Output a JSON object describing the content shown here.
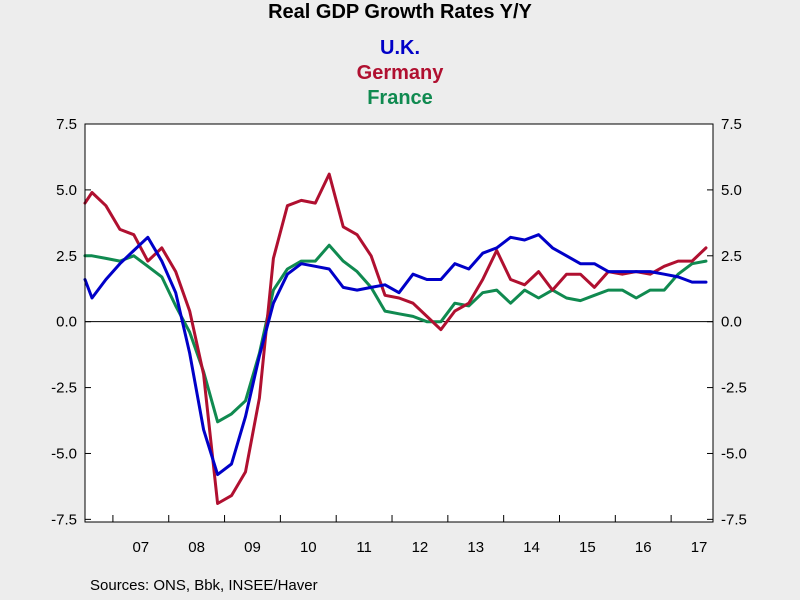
{
  "chart_data": {
    "type": "line",
    "title": "Real GDP Growth Rates Y/Y",
    "x_tick_labels": [
      "07",
      "08",
      "09",
      "10",
      "11",
      "12",
      "13",
      "14",
      "15",
      "16",
      "17"
    ],
    "y_ticks": [
      7.5,
      5.0,
      2.5,
      0.0,
      -2.5,
      -5.0,
      -7.5
    ],
    "y_tick_labels": [
      "7.5",
      "5.0",
      "2.5",
      "0.0",
      "-2.5",
      "-5.0",
      "-7.5"
    ],
    "ylim": [
      -7.6,
      7.5
    ],
    "xlim": [
      2006.5,
      2017.75
    ],
    "zero_line": true,
    "legend_placement": "top-center",
    "source": "Sources:  ONS, Bbk, INSEE/Haver",
    "series": [
      {
        "name": "U.K.",
        "color": "#0000c8",
        "x": [
          2006.5,
          2006.625,
          2006.875,
          2007.125,
          2007.375,
          2007.625,
          2007.875,
          2008.125,
          2008.375,
          2008.625,
          2008.875,
          2009.125,
          2009.375,
          2009.625,
          2009.875,
          2010.125,
          2010.375,
          2010.625,
          2010.875,
          2011.125,
          2011.375,
          2011.625,
          2011.875,
          2012.125,
          2012.375,
          2012.625,
          2012.875,
          2013.125,
          2013.375,
          2013.625,
          2013.875,
          2014.125,
          2014.375,
          2014.625,
          2014.875,
          2015.125,
          2015.375,
          2015.625,
          2015.875,
          2016.125,
          2016.375,
          2016.625,
          2016.875,
          2017.125,
          2017.375,
          2017.625
        ],
        "values": [
          1.6,
          0.9,
          1.6,
          2.2,
          2.7,
          3.2,
          2.3,
          1.1,
          -1.2,
          -4.1,
          -5.8,
          -5.4,
          -3.6,
          -1.3,
          0.7,
          1.8,
          2.2,
          2.1,
          2.0,
          1.3,
          1.2,
          1.3,
          1.4,
          1.1,
          1.8,
          1.6,
          1.6,
          2.2,
          2.0,
          2.6,
          2.8,
          3.2,
          3.1,
          3.3,
          2.8,
          2.5,
          2.2,
          2.2,
          1.9,
          1.9,
          1.9,
          1.9,
          1.8,
          1.7,
          1.5,
          1.5
        ]
      },
      {
        "name": "Germany",
        "color": "#b01030",
        "x": [
          2006.5,
          2006.625,
          2006.875,
          2007.125,
          2007.375,
          2007.625,
          2007.875,
          2008.125,
          2008.375,
          2008.625,
          2008.875,
          2009.125,
          2009.375,
          2009.625,
          2009.875,
          2010.125,
          2010.375,
          2010.625,
          2010.875,
          2011.125,
          2011.375,
          2011.625,
          2011.875,
          2012.125,
          2012.375,
          2012.625,
          2012.875,
          2013.125,
          2013.375,
          2013.625,
          2013.875,
          2014.125,
          2014.375,
          2014.625,
          2014.875,
          2015.125,
          2015.375,
          2015.625,
          2015.875,
          2016.125,
          2016.375,
          2016.625,
          2016.875,
          2017.125,
          2017.375,
          2017.625
        ],
        "values": [
          4.5,
          4.9,
          4.4,
          3.5,
          3.3,
          2.3,
          2.8,
          1.9,
          0.4,
          -2.0,
          -6.9,
          -6.6,
          -5.7,
          -2.9,
          2.4,
          4.4,
          4.6,
          4.5,
          5.6,
          3.6,
          3.3,
          2.5,
          1.0,
          0.9,
          0.7,
          0.2,
          -0.3,
          0.4,
          0.7,
          1.6,
          2.7,
          1.6,
          1.4,
          1.9,
          1.2,
          1.8,
          1.8,
          1.3,
          1.9,
          1.8,
          1.9,
          1.8,
          2.1,
          2.3,
          2.3,
          2.8
        ]
      },
      {
        "name": "France",
        "color": "#108a50",
        "x": [
          2006.5,
          2006.625,
          2006.875,
          2007.125,
          2007.375,
          2007.625,
          2007.875,
          2008.125,
          2008.375,
          2008.625,
          2008.875,
          2009.125,
          2009.375,
          2009.625,
          2009.875,
          2010.125,
          2010.375,
          2010.625,
          2010.875,
          2011.125,
          2011.375,
          2011.625,
          2011.875,
          2012.125,
          2012.375,
          2012.625,
          2012.875,
          2013.125,
          2013.375,
          2013.625,
          2013.875,
          2014.125,
          2014.375,
          2014.625,
          2014.875,
          2015.125,
          2015.375,
          2015.625,
          2015.875,
          2016.125,
          2016.375,
          2016.625,
          2016.875,
          2017.125,
          2017.375,
          2017.625
        ],
        "values": [
          2.5,
          2.5,
          2.4,
          2.3,
          2.5,
          2.1,
          1.7,
          0.6,
          -0.4,
          -1.9,
          -3.8,
          -3.5,
          -3.0,
          -1.2,
          1.2,
          2.0,
          2.3,
          2.3,
          2.9,
          2.3,
          1.9,
          1.3,
          0.4,
          0.3,
          0.2,
          0.0,
          0.0,
          0.7,
          0.6,
          1.1,
          1.2,
          0.7,
          1.2,
          0.9,
          1.2,
          0.9,
          0.8,
          1.0,
          1.2,
          1.2,
          0.9,
          1.2,
          1.2,
          1.8,
          2.2,
          2.3
        ]
      }
    ]
  }
}
